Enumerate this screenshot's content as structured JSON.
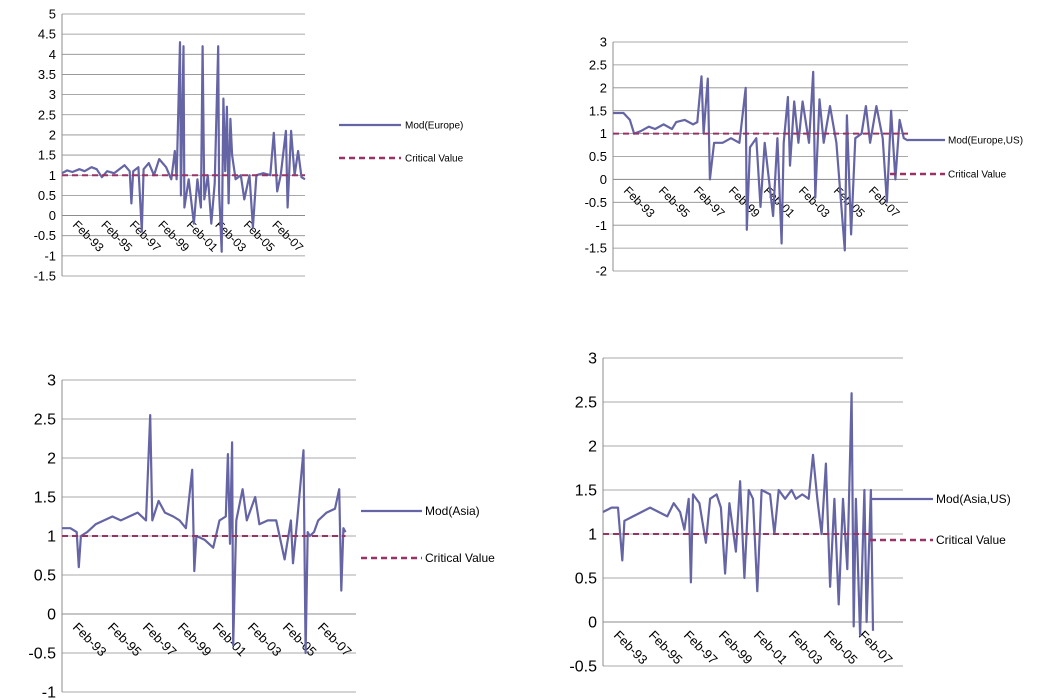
{
  "chart_data": [
    {
      "type": "line",
      "x": [
        "Feb-93",
        "Feb-95",
        "Feb-97",
        "Feb-99",
        "Feb-01",
        "Feb-03",
        "Feb-05",
        "Feb-07"
      ],
      "ylim": [
        -1.5,
        5
      ],
      "yticks": [
        "5",
        "4.5",
        "4",
        "3.5",
        "3",
        "2.5",
        "2",
        "1.5",
        "1",
        "0.5",
        "0",
        "-0.5",
        "-1",
        "-1.5"
      ],
      "grid": true,
      "series": [
        {
          "name": "Mod(Europe)",
          "color": "#6565a6",
          "dashed": false,
          "points": [
            [
              1993.0,
              1.05
            ],
            [
              1993.3,
              1.12
            ],
            [
              1993.6,
              1.08
            ],
            [
              1994.0,
              1.15
            ],
            [
              1994.3,
              1.1
            ],
            [
              1994.7,
              1.2
            ],
            [
              1995.0,
              1.15
            ],
            [
              1995.3,
              0.95
            ],
            [
              1995.6,
              1.1
            ],
            [
              1996.0,
              1.05
            ],
            [
              1996.3,
              1.15
            ],
            [
              1996.6,
              1.25
            ],
            [
              1996.9,
              1.1
            ],
            [
              1997.0,
              0.3
            ],
            [
              1997.1,
              1.1
            ],
            [
              1997.4,
              1.2
            ],
            [
              1997.6,
              -0.4
            ],
            [
              1997.7,
              1.15
            ],
            [
              1998.0,
              1.3
            ],
            [
              1998.3,
              1.0
            ],
            [
              1998.6,
              1.4
            ],
            [
              1999.0,
              1.2
            ],
            [
              1999.3,
              0.9
            ],
            [
              1999.5,
              1.6
            ],
            [
              1999.6,
              0.9
            ],
            [
              1999.8,
              4.3
            ],
            [
              1999.85,
              0.5
            ],
            [
              2000.0,
              4.2
            ],
            [
              2000.05,
              0.2
            ],
            [
              2000.3,
              0.9
            ],
            [
              2000.6,
              -0.2
            ],
            [
              2000.8,
              0.9
            ],
            [
              2001.0,
              0.2
            ],
            [
              2001.1,
              4.2
            ],
            [
              2001.2,
              0.4
            ],
            [
              2001.4,
              1.0
            ],
            [
              2001.6,
              -0.2
            ],
            [
              2001.8,
              0.8
            ],
            [
              2002.0,
              4.2
            ],
            [
              2002.05,
              0.6
            ],
            [
              2002.2,
              -0.9
            ],
            [
              2002.3,
              2.9
            ],
            [
              2002.4,
              1.1
            ],
            [
              2002.5,
              2.7
            ],
            [
              2002.6,
              0.3
            ],
            [
              2002.7,
              2.4
            ],
            [
              2002.8,
              1.5
            ],
            [
              2003.0,
              0.9
            ],
            [
              2003.3,
              1.0
            ],
            [
              2003.5,
              0.4
            ],
            [
              2003.8,
              1.0
            ],
            [
              2004.0,
              -0.3
            ],
            [
              2004.2,
              1.0
            ],
            [
              2004.6,
              1.05
            ],
            [
              2005.0,
              1.0
            ],
            [
              2005.2,
              2.05
            ],
            [
              2005.4,
              0.6
            ],
            [
              2005.6,
              1.0
            ],
            [
              2005.9,
              2.1
            ],
            [
              2006.0,
              0.2
            ],
            [
              2006.2,
              2.1
            ],
            [
              2006.4,
              1.0
            ],
            [
              2006.6,
              1.6
            ],
            [
              2006.8,
              0.95
            ],
            [
              2007.0,
              0.9
            ]
          ]
        },
        {
          "name": "Critical Value",
          "color": "#993366",
          "dashed": true,
          "points": [
            [
              1993.0,
              1.0
            ],
            [
              2007.0,
              1.0
            ]
          ]
        }
      ]
    },
    {
      "type": "line",
      "x": [
        "Feb-93",
        "Feb-95",
        "Feb-97",
        "Feb-99",
        "Feb-01",
        "Feb-03",
        "Feb-05",
        "Feb-07"
      ],
      "ylim": [
        -2,
        3
      ],
      "yticks": [
        "3",
        "2.5",
        "2",
        "1.5",
        "1",
        "0.5",
        "0",
        "-0.5",
        "-1",
        "-1.5",
        "-2"
      ],
      "grid": true,
      "series": [
        {
          "name": "Mod(Europe,US)",
          "color": "#6565a6",
          "dashed": false,
          "points": [
            [
              1993.0,
              1.45
            ],
            [
              1993.5,
              1.45
            ],
            [
              1993.8,
              1.3
            ],
            [
              1994.0,
              1.0
            ],
            [
              1994.3,
              1.05
            ],
            [
              1994.7,
              1.15
            ],
            [
              1995.0,
              1.1
            ],
            [
              1995.4,
              1.2
            ],
            [
              1995.8,
              1.1
            ],
            [
              1996.0,
              1.25
            ],
            [
              1996.4,
              1.3
            ],
            [
              1996.8,
              1.2
            ],
            [
              1997.0,
              1.25
            ],
            [
              1997.2,
              2.25
            ],
            [
              1997.3,
              1.0
            ],
            [
              1997.5,
              2.2
            ],
            [
              1997.6,
              0.0
            ],
            [
              1997.8,
              0.8
            ],
            [
              1998.2,
              0.8
            ],
            [
              1998.6,
              0.9
            ],
            [
              1999.0,
              0.8
            ],
            [
              1999.3,
              2.0
            ],
            [
              1999.35,
              -1.1
            ],
            [
              1999.5,
              0.7
            ],
            [
              1999.8,
              0.9
            ],
            [
              2000.0,
              -0.6
            ],
            [
              2000.2,
              0.8
            ],
            [
              2000.6,
              -0.8
            ],
            [
              2000.8,
              0.9
            ],
            [
              2001.0,
              -1.4
            ],
            [
              2001.1,
              0.8
            ],
            [
              2001.3,
              1.8
            ],
            [
              2001.4,
              0.3
            ],
            [
              2001.6,
              1.7
            ],
            [
              2001.8,
              0.8
            ],
            [
              2002.0,
              1.7
            ],
            [
              2002.3,
              0.8
            ],
            [
              2002.5,
              2.35
            ],
            [
              2002.6,
              -0.4
            ],
            [
              2002.8,
              1.75
            ],
            [
              2003.0,
              0.8
            ],
            [
              2003.3,
              1.6
            ],
            [
              2003.6,
              0.8
            ],
            [
              2004.0,
              -1.55
            ],
            [
              2004.1,
              1.4
            ],
            [
              2004.3,
              -1.2
            ],
            [
              2004.5,
              0.9
            ],
            [
              2004.8,
              1.0
            ],
            [
              2005.0,
              1.6
            ],
            [
              2005.2,
              0.8
            ],
            [
              2005.5,
              1.6
            ],
            [
              2005.8,
              0.9
            ],
            [
              2006.0,
              -0.5
            ],
            [
              2006.2,
              1.5
            ],
            [
              2006.4,
              0.0
            ],
            [
              2006.6,
              1.3
            ],
            [
              2006.8,
              0.9
            ],
            [
              2007.0,
              0.85
            ]
          ]
        },
        {
          "name": "Critical Value",
          "color": "#993366",
          "dashed": true,
          "points": [
            [
              1993.0,
              1.0
            ],
            [
              2007.0,
              1.0
            ]
          ]
        }
      ]
    },
    {
      "type": "line",
      "x": [
        "Feb-93",
        "Feb-95",
        "Feb-97",
        "Feb-99",
        "Feb-01",
        "Feb-03",
        "Feb-05",
        "Feb-07"
      ],
      "ylim": [
        -1,
        3
      ],
      "yticks": [
        "3",
        "2.5",
        "2",
        "1.5",
        "1",
        "0.5",
        "0",
        "-0.5",
        "-1"
      ],
      "grid": true,
      "series": [
        {
          "name": "Mod(Asia)",
          "color": "#6565a6",
          "dashed": false,
          "points": [
            [
              1993.0,
              1.1
            ],
            [
              1993.4,
              1.1
            ],
            [
              1993.7,
              1.05
            ],
            [
              1993.8,
              0.6
            ],
            [
              1993.9,
              1.0
            ],
            [
              1994.2,
              1.05
            ],
            [
              1994.6,
              1.15
            ],
            [
              1995.0,
              1.2
            ],
            [
              1995.4,
              1.25
            ],
            [
              1995.8,
              1.2
            ],
            [
              1996.2,
              1.25
            ],
            [
              1996.6,
              1.3
            ],
            [
              1997.0,
              1.2
            ],
            [
              1997.2,
              2.55
            ],
            [
              1997.3,
              1.2
            ],
            [
              1997.6,
              1.45
            ],
            [
              1997.9,
              1.3
            ],
            [
              1998.3,
              1.25
            ],
            [
              1998.6,
              1.2
            ],
            [
              1998.9,
              1.1
            ],
            [
              1999.2,
              1.85
            ],
            [
              1999.3,
              0.55
            ],
            [
              1999.4,
              1.0
            ],
            [
              1999.8,
              0.95
            ],
            [
              2000.2,
              0.85
            ],
            [
              2000.5,
              1.2
            ],
            [
              2000.8,
              1.25
            ],
            [
              2000.9,
              2.05
            ],
            [
              2001.0,
              0.9
            ],
            [
              2001.1,
              2.2
            ],
            [
              2001.15,
              -0.4
            ],
            [
              2001.3,
              1.2
            ],
            [
              2001.6,
              1.6
            ],
            [
              2001.8,
              1.2
            ],
            [
              2002.2,
              1.5
            ],
            [
              2002.4,
              1.15
            ],
            [
              2002.8,
              1.2
            ],
            [
              2003.2,
              1.2
            ],
            [
              2003.6,
              0.7
            ],
            [
              2003.9,
              1.2
            ],
            [
              2004.0,
              0.65
            ],
            [
              2004.2,
              1.2
            ],
            [
              2004.5,
              2.1
            ],
            [
              2004.6,
              -0.5
            ],
            [
              2004.7,
              1.05
            ],
            [
              2004.8,
              1.0
            ],
            [
              2005.0,
              1.05
            ],
            [
              2005.2,
              1.2
            ],
            [
              2005.6,
              1.3
            ],
            [
              2006.0,
              1.35
            ],
            [
              2006.2,
              1.6
            ],
            [
              2006.3,
              0.3
            ],
            [
              2006.4,
              1.1
            ],
            [
              2006.5,
              1.05
            ]
          ]
        },
        {
          "name": "Critical Value",
          "color": "#993366",
          "dashed": true,
          "points": [
            [
              1993.0,
              1.0
            ],
            [
              2006.5,
              1.0
            ]
          ]
        }
      ]
    },
    {
      "type": "line",
      "x": [
        "Feb-93",
        "Feb-95",
        "Feb-97",
        "Feb-99",
        "Feb-01",
        "Feb-03",
        "Feb-05",
        "Feb-07"
      ],
      "ylim": [
        -0.5,
        3
      ],
      "yticks": [
        "3",
        "2.5",
        "2",
        "1.5",
        "1",
        "0.5",
        "0",
        "-0.5"
      ],
      "grid": true,
      "series": [
        {
          "name": "Mod(Asia,US)",
          "color": "#6565a6",
          "dashed": false,
          "points": [
            [
              1993.0,
              1.25
            ],
            [
              1993.4,
              1.3
            ],
            [
              1993.7,
              1.3
            ],
            [
              1993.9,
              0.7
            ],
            [
              1994.0,
              1.15
            ],
            [
              1994.4,
              1.2
            ],
            [
              1994.8,
              1.25
            ],
            [
              1995.2,
              1.3
            ],
            [
              1995.6,
              1.25
            ],
            [
              1996.0,
              1.2
            ],
            [
              1996.3,
              1.35
            ],
            [
              1996.6,
              1.25
            ],
            [
              1996.8,
              1.05
            ],
            [
              1997.0,
              1.4
            ],
            [
              1997.1,
              0.45
            ],
            [
              1997.2,
              1.45
            ],
            [
              1997.5,
              1.35
            ],
            [
              1997.8,
              0.9
            ],
            [
              1998.0,
              1.4
            ],
            [
              1998.3,
              1.45
            ],
            [
              1998.5,
              1.3
            ],
            [
              1998.7,
              0.55
            ],
            [
              1998.9,
              1.35
            ],
            [
              1999.2,
              0.8
            ],
            [
              1999.4,
              1.6
            ],
            [
              1999.6,
              0.5
            ],
            [
              1999.8,
              1.5
            ],
            [
              2000.0,
              1.4
            ],
            [
              2000.2,
              0.35
            ],
            [
              2000.4,
              1.5
            ],
            [
              2000.8,
              1.45
            ],
            [
              2001.0,
              1.0
            ],
            [
              2001.2,
              1.5
            ],
            [
              2001.5,
              1.4
            ],
            [
              2001.8,
              1.5
            ],
            [
              2002.0,
              1.4
            ],
            [
              2002.3,
              1.45
            ],
            [
              2002.6,
              1.4
            ],
            [
              2002.8,
              1.9
            ],
            [
              2003.0,
              1.4
            ],
            [
              2003.2,
              1.0
            ],
            [
              2003.4,
              1.8
            ],
            [
              2003.6,
              0.4
            ],
            [
              2003.8,
              1.4
            ],
            [
              2004.0,
              0.2
            ],
            [
              2004.2,
              1.4
            ],
            [
              2004.4,
              0.6
            ],
            [
              2004.6,
              2.6
            ],
            [
              2004.7,
              -0.05
            ],
            [
              2004.8,
              1.4
            ],
            [
              2005.0,
              -0.15
            ],
            [
              2005.2,
              1.5
            ],
            [
              2005.3,
              0.0
            ],
            [
              2005.5,
              1.5
            ],
            [
              2005.6,
              -0.1
            ]
          ]
        },
        {
          "name": "Critical Value",
          "color": "#993366",
          "dashed": true,
          "points": [
            [
              1993.0,
              1.0
            ],
            [
              2005.6,
              1.0
            ]
          ]
        }
      ]
    }
  ]
}
